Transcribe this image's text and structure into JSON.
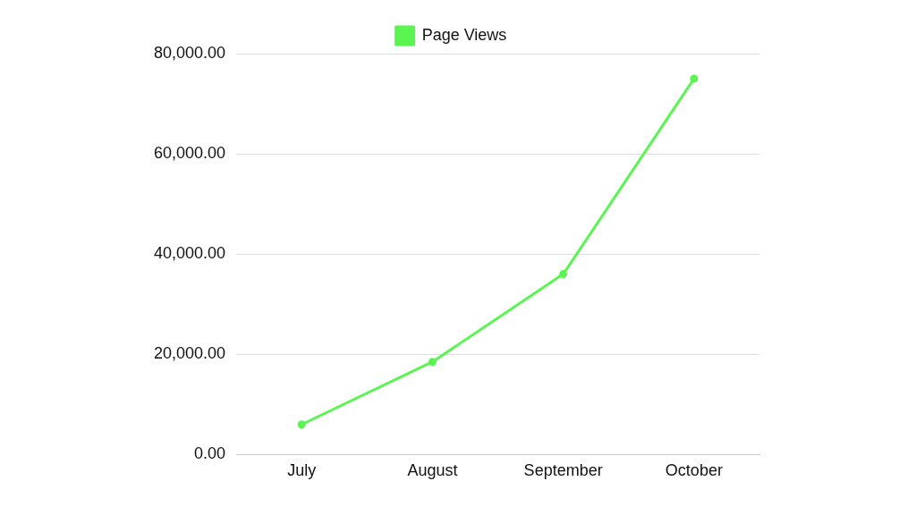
{
  "chart_data": {
    "type": "line",
    "categories": [
      "July",
      "August",
      "September",
      "October"
    ],
    "series": [
      {
        "name": "Page Views",
        "color": "#5af550",
        "values": [
          6000,
          18500,
          36000,
          75000
        ]
      }
    ],
    "ylim": [
      0,
      80000
    ],
    "yticks": [
      {
        "value": 0,
        "label": "0.00"
      },
      {
        "value": 20000,
        "label": "20,000.00"
      },
      {
        "value": 40000,
        "label": "40,000.00"
      },
      {
        "value": 60000,
        "label": "60,000.00"
      },
      {
        "value": 80000,
        "label": "80,000.00"
      }
    ],
    "grid": "y",
    "legend": "top",
    "marker": "circle",
    "line_style": "solid"
  }
}
